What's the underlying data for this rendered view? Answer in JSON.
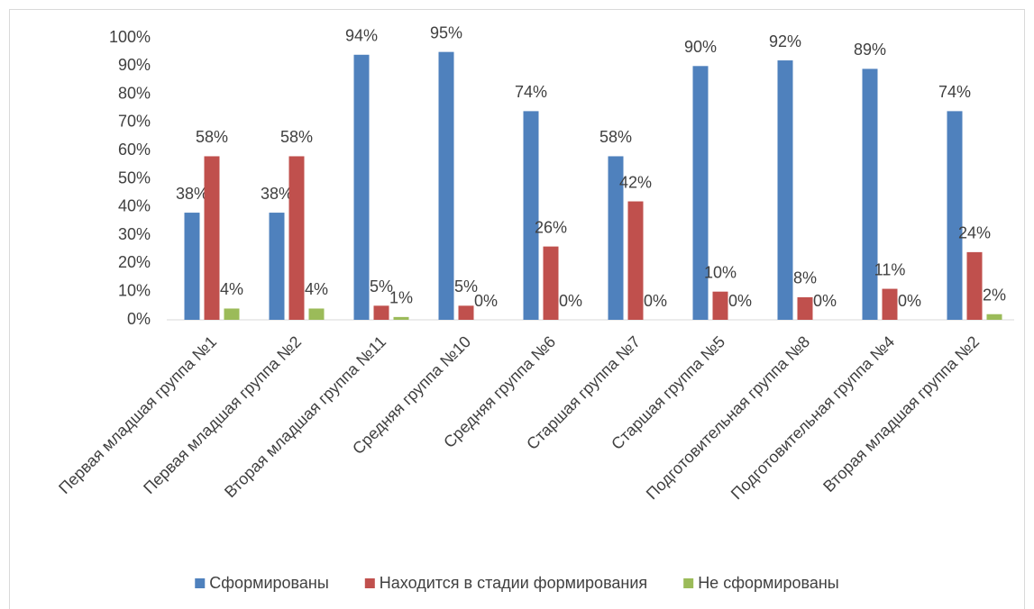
{
  "chart_data": {
    "type": "bar",
    "categories": [
      "Первая младшая группа №1",
      "Первая младшая группа №2",
      "Вторая младшая группа №11",
      "Средняя группа №10",
      "Средняя группа №6",
      "Старшая группа №7",
      "Старшая группа №5",
      "Подготовительная группа №8",
      "Подготовительная группа №4",
      "Вторая младшая группа №2"
    ],
    "series": [
      {
        "name": "Сформированы",
        "color": "#4f81bd",
        "values": [
          38,
          38,
          94,
          95,
          74,
          58,
          90,
          92,
          89,
          74
        ],
        "value_labels": [
          "38%",
          "38%",
          "94%",
          "95%",
          "74%",
          "58%",
          "90%",
          "92%",
          "89%",
          "74%"
        ]
      },
      {
        "name": "Находится в стадии формирования",
        "color": "#c0504d",
        "values": [
          58,
          58,
          5,
          5,
          26,
          42,
          10,
          8,
          11,
          24
        ],
        "value_labels": [
          "58%",
          "58%",
          "5%",
          "5%",
          "26%",
          "42%",
          "10%",
          "8%",
          "11%",
          "24%"
        ]
      },
      {
        "name": "Не сформированы",
        "color": "#9bbb59",
        "values": [
          4,
          4,
          1,
          0,
          0,
          0,
          0,
          0,
          0,
          2
        ],
        "value_labels": [
          "4%",
          "4%",
          "1%",
          "0%",
          "0%",
          "0%",
          "0%",
          "0%",
          "0%",
          "2%"
        ]
      }
    ],
    "ylim": [
      0,
      100
    ],
    "yticks": [
      {
        "value": 0,
        "label": "0%"
      },
      {
        "value": 10,
        "label": "10%"
      },
      {
        "value": 20,
        "label": "20%"
      },
      {
        "value": 30,
        "label": "30%"
      },
      {
        "value": 40,
        "label": "40%"
      },
      {
        "value": 50,
        "label": "50%"
      },
      {
        "value": 60,
        "label": "60%"
      },
      {
        "value": 70,
        "label": "70%"
      },
      {
        "value": 80,
        "label": "80%"
      },
      {
        "value": 90,
        "label": "90%"
      },
      {
        "value": 100,
        "label": "100%"
      }
    ],
    "grid": false,
    "legend": "bottom"
  }
}
